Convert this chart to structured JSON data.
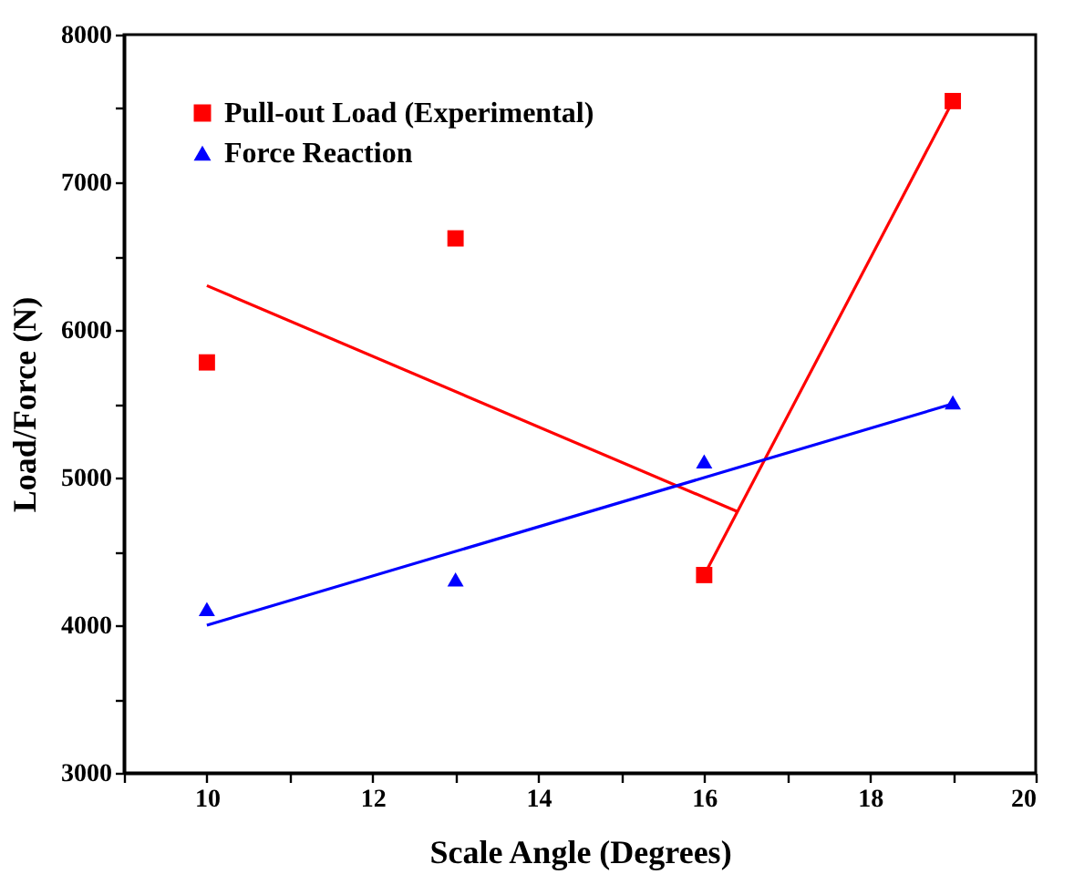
{
  "chart_data": {
    "type": "scatter",
    "xlabel": "Scale Angle (Degrees)",
    "ylabel": "Load/Force (N)",
    "xlim": [
      9,
      20
    ],
    "ylim": [
      3000,
      8000
    ],
    "xticks": [
      {
        "value": 9,
        "label": null
      },
      10,
      {
        "value": 11,
        "label": null
      },
      12,
      {
        "value": 13,
        "label": null
      },
      14,
      {
        "value": 15,
        "label": null
      },
      16,
      {
        "value": 17,
        "label": null
      },
      18,
      {
        "value": 19,
        "label": null
      },
      20
    ],
    "yticks": [
      3000,
      {
        "value": 3500,
        "label": null
      },
      4000,
      {
        "value": 4500,
        "label": null
      },
      5000,
      {
        "value": 5500,
        "label": null
      },
      6000,
      {
        "value": 6500,
        "label": null
      },
      7000,
      {
        "value": 7500,
        "label": null
      },
      8000
    ],
    "legend": "top left",
    "series": [
      {
        "name": "Pull-out Load (Experimental)",
        "color": "#ff0000",
        "marker": "square",
        "x": [
          10,
          13,
          16,
          19
        ],
        "values": [
          5780,
          6620,
          4340,
          7550
        ]
      },
      {
        "name": "Force Reaction",
        "color": "#0000ff",
        "marker": "triangle",
        "x": [
          10,
          13,
          16,
          19
        ],
        "values": [
          4110,
          4310,
          5110,
          5510
        ]
      },
      {
        "type": "line",
        "color": "#ff0000",
        "x": [
          10,
          16.4
        ],
        "values": [
          6300,
          4770
        ]
      },
      {
        "type": "line",
        "color": "#ff0000",
        "x": [
          16,
          19
        ],
        "values": [
          4340,
          7550
        ]
      },
      {
        "type": "line",
        "color": "#0000ff",
        "x": [
          10,
          19
        ],
        "values": [
          4000,
          5500
        ]
      }
    ]
  }
}
